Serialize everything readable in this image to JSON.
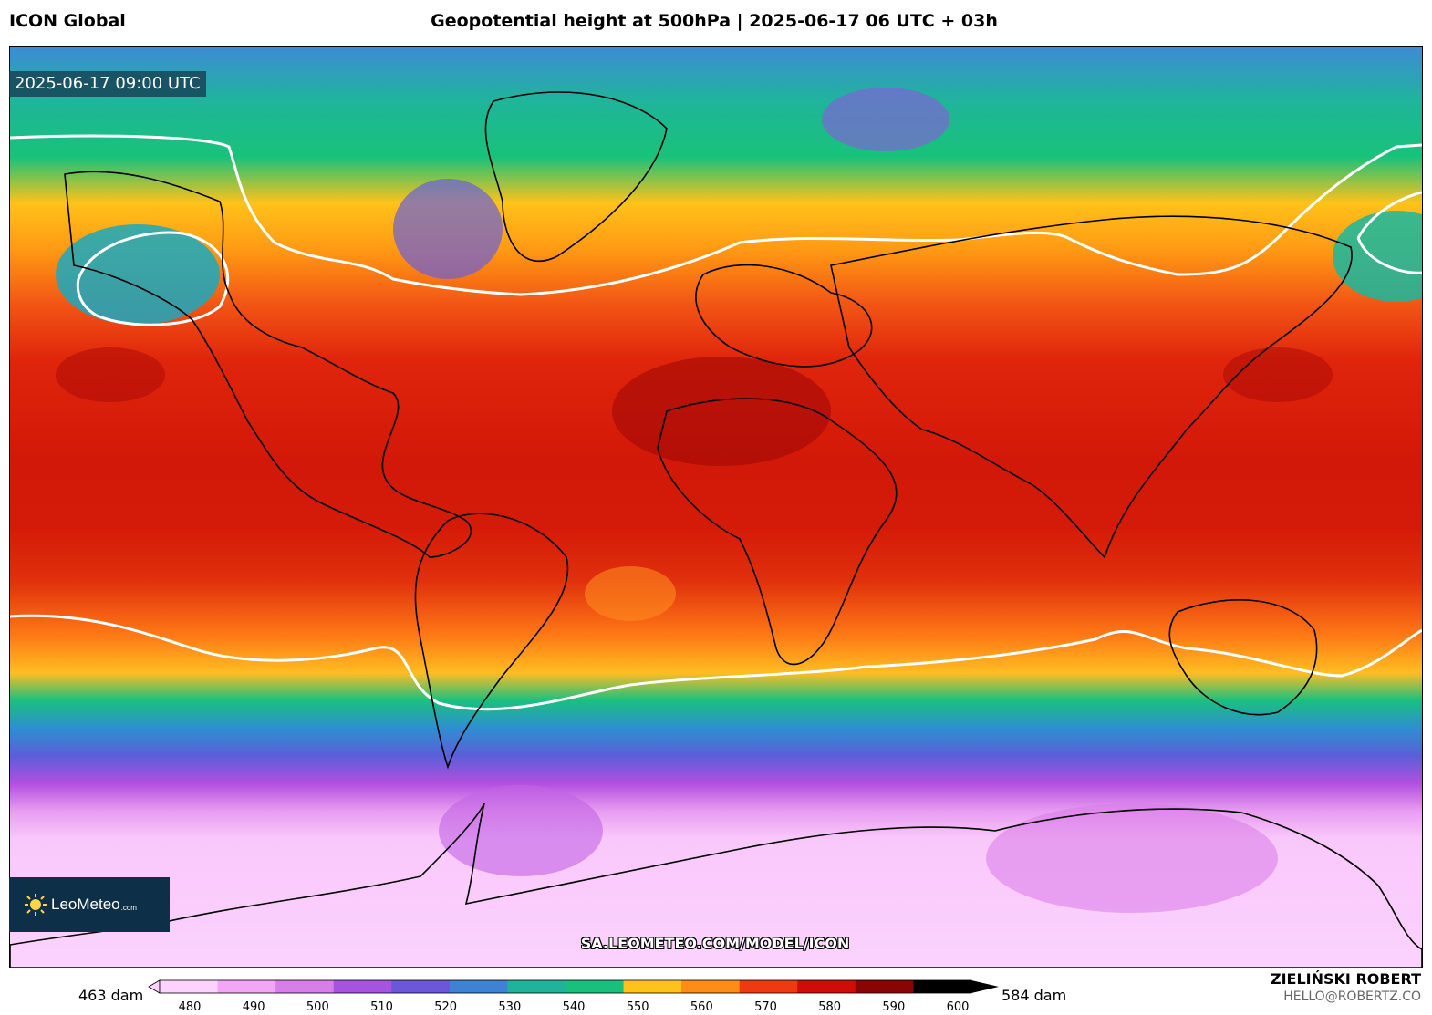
{
  "header": {
    "model_name": "ICON Global",
    "title": "Geopotential height at 500hPa | 2025-06-17 06 UTC + 03h"
  },
  "map": {
    "valid_time": "2025-06-17 09:00 UTC",
    "source_url": "SA.LEOMETEO.COM/MODEL/ICON",
    "contour_highlight_dam": 552
  },
  "logo": {
    "name": "LeoMeteo",
    "suffix": ".com",
    "icon": "sun-icon"
  },
  "colorbar": {
    "min_label": "463 dam",
    "max_label": "584 dam",
    "ticks": [
      "480",
      "490",
      "500",
      "510",
      "520",
      "530",
      "540",
      "550",
      "560",
      "570",
      "580",
      "590",
      "600"
    ],
    "colors": [
      "#fcd3fd",
      "#f3a6f5",
      "#d77ee8",
      "#a653df",
      "#6b57d8",
      "#3d82d3",
      "#1eb39a",
      "#17c07c",
      "#ffc21a",
      "#ff8c14",
      "#ef3a10",
      "#cf0c06",
      "#8a0404",
      "#000000"
    ]
  },
  "credits": {
    "author": "ZIELIŃSKI ROBERT",
    "email": "HELLO@ROBERTZ.CO"
  }
}
